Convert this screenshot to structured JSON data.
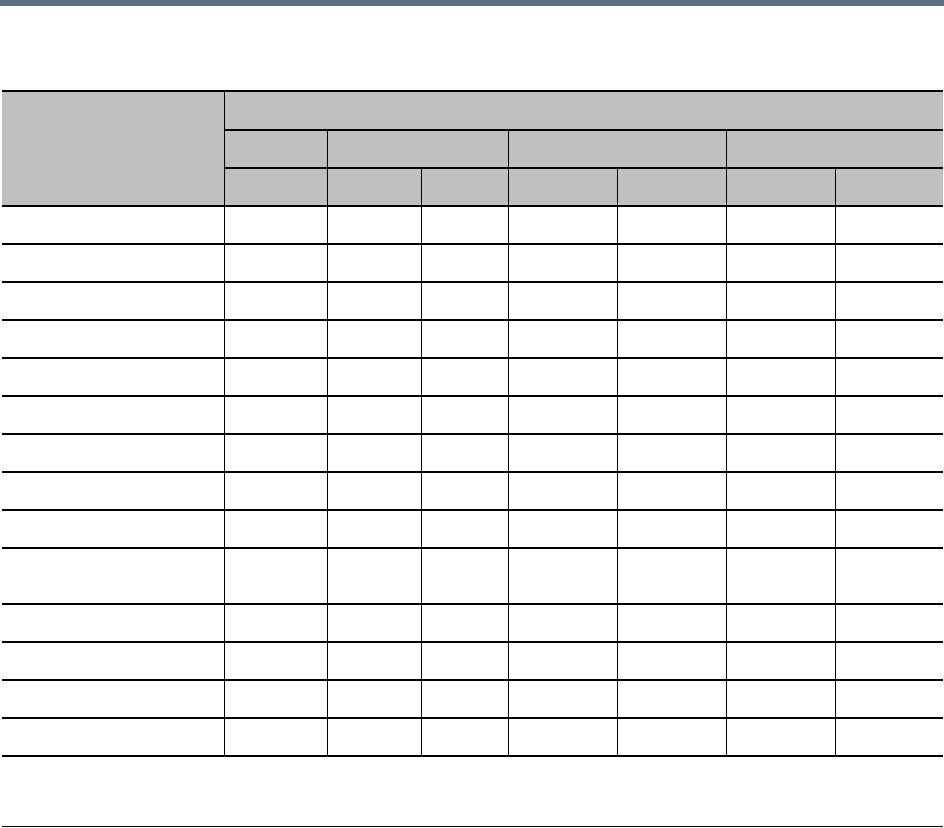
{
  "colors": {
    "top_bar": "#5f7080",
    "header_fill": "#c0c0c0"
  },
  "table": {
    "row_count": 14,
    "data_column_count": 7,
    "header_groups": [
      1,
      2,
      2,
      2
    ]
  }
}
